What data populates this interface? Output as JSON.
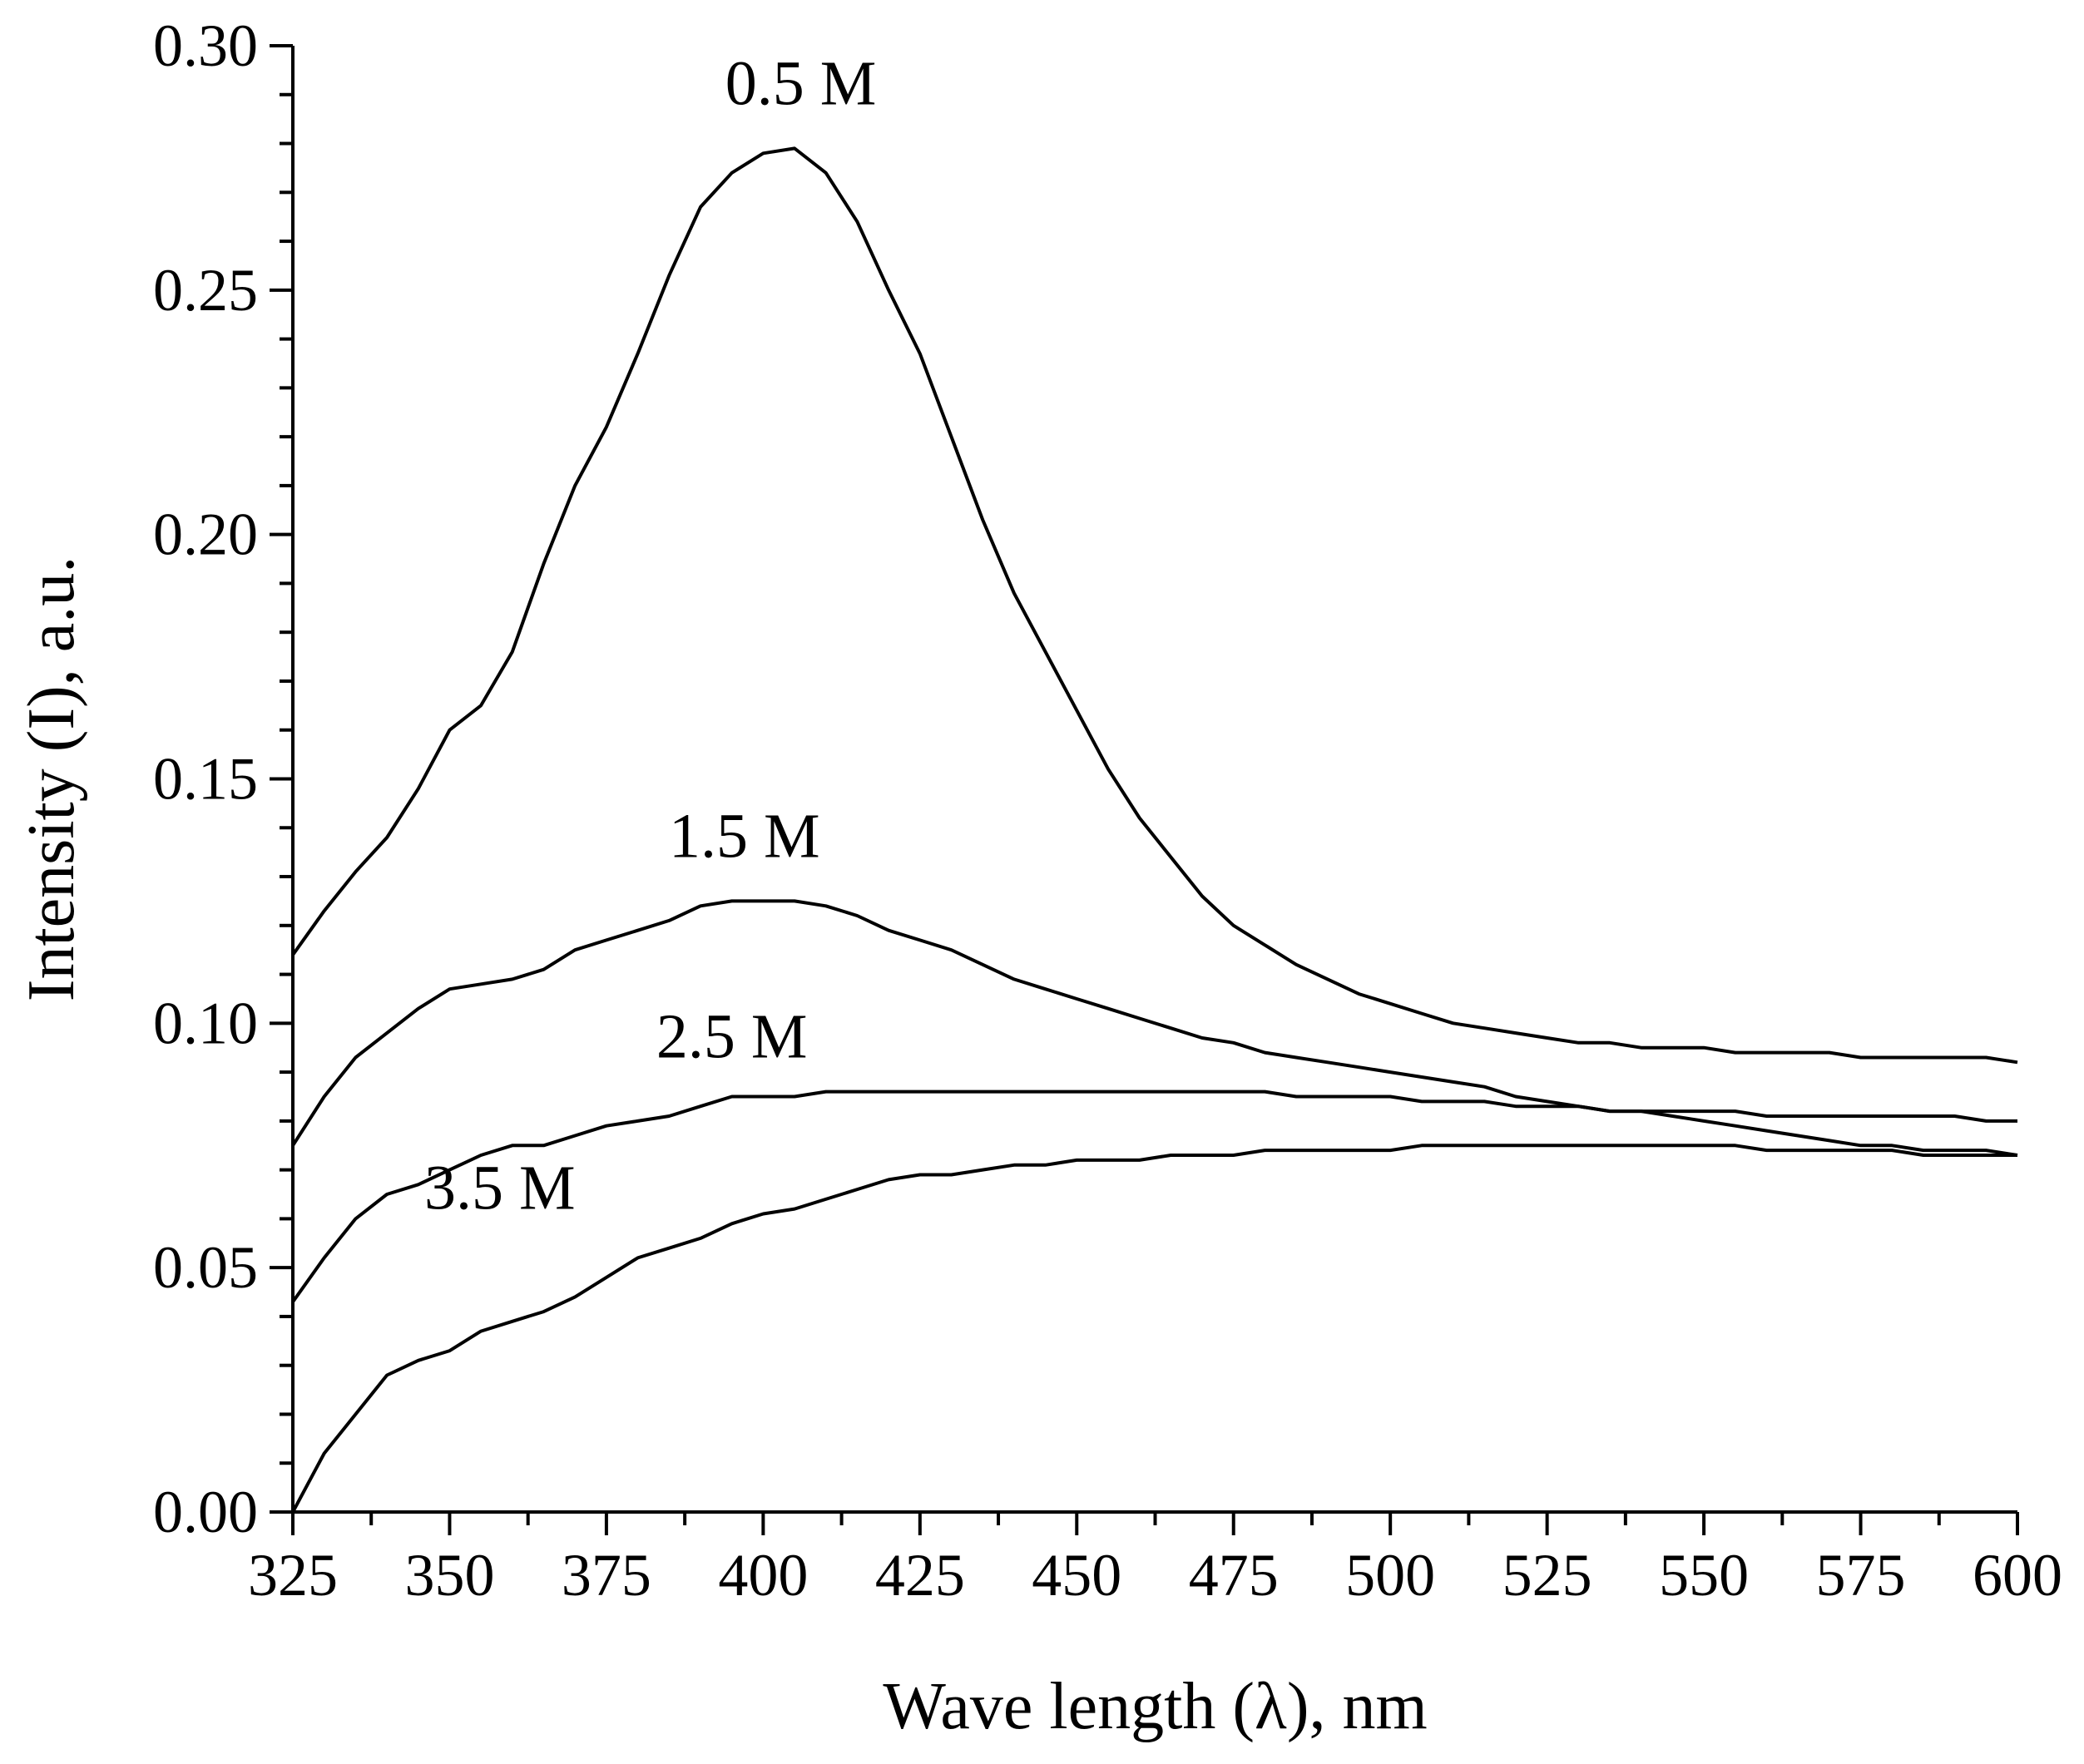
{
  "chart_data": {
    "type": "line",
    "xlabel": "Wave length (λ), nm",
    "ylabel": "Intensity (I), a.u.",
    "xlim": [
      325,
      600
    ],
    "ylim": [
      0,
      0.3
    ],
    "xticks": [
      "325",
      "350",
      "375",
      "400",
      "425",
      "450",
      "475",
      "500",
      "525",
      "550",
      "575",
      "600"
    ],
    "yticks": [
      "0.00",
      "0.05",
      "0.10",
      "0.15",
      "0.20",
      "0.25",
      "0.30"
    ],
    "grid": false,
    "series": [
      {
        "name": "0.5 M",
        "label_at": [
          406,
          0.288
        ],
        "x": [
          325,
          330,
          335,
          340,
          345,
          350,
          355,
          360,
          365,
          370,
          375,
          380,
          385,
          390,
          395,
          400,
          405,
          410,
          415,
          420,
          425,
          430,
          435,
          440,
          445,
          450,
          455,
          460,
          465,
          470,
          475,
          480,
          485,
          490,
          495,
          500,
          505,
          510,
          515,
          520,
          525,
          530,
          535,
          540,
          545,
          550,
          555,
          560,
          565,
          570,
          575,
          580,
          585,
          590,
          595,
          600
        ],
        "y": [
          0.114,
          0.123,
          0.131,
          0.138,
          0.148,
          0.16,
          0.165,
          0.176,
          0.194,
          0.21,
          0.222,
          0.237,
          0.253,
          0.267,
          0.274,
          0.278,
          0.279,
          0.274,
          0.264,
          0.25,
          0.237,
          0.22,
          0.203,
          0.188,
          0.176,
          0.164,
          0.152,
          0.142,
          0.134,
          0.126,
          0.12,
          0.116,
          0.112,
          0.109,
          0.106,
          0.104,
          0.102,
          0.1,
          0.099,
          0.098,
          0.097,
          0.096,
          0.096,
          0.095,
          0.095,
          0.095,
          0.094,
          0.094,
          0.094,
          0.094,
          0.093,
          0.093,
          0.093,
          0.093,
          0.093,
          0.092
        ]
      },
      {
        "name": "1.5 M",
        "label_at": [
          397,
          0.134
        ],
        "x": [
          325,
          330,
          335,
          340,
          345,
          350,
          355,
          360,
          365,
          370,
          375,
          380,
          385,
          390,
          395,
          400,
          405,
          410,
          415,
          420,
          425,
          430,
          435,
          440,
          445,
          450,
          455,
          460,
          465,
          470,
          475,
          480,
          485,
          490,
          495,
          500,
          505,
          510,
          515,
          520,
          525,
          530,
          535,
          540,
          545,
          550,
          555,
          560,
          565,
          570,
          575,
          580,
          585,
          590,
          595,
          600
        ],
        "y": [
          0.075,
          0.085,
          0.093,
          0.098,
          0.103,
          0.107,
          0.108,
          0.109,
          0.111,
          0.115,
          0.117,
          0.119,
          0.121,
          0.124,
          0.125,
          0.125,
          0.125,
          0.124,
          0.122,
          0.119,
          0.117,
          0.115,
          0.112,
          0.109,
          0.107,
          0.105,
          0.103,
          0.101,
          0.099,
          0.097,
          0.096,
          0.094,
          0.093,
          0.092,
          0.091,
          0.09,
          0.089,
          0.088,
          0.087,
          0.085,
          0.084,
          0.083,
          0.082,
          0.082,
          0.081,
          0.08,
          0.079,
          0.078,
          0.077,
          0.076,
          0.075,
          0.075,
          0.074,
          0.074,
          0.074,
          0.073
        ]
      },
      {
        "name": "2.5 M",
        "label_at": [
          395,
          0.093
        ],
        "x": [
          325,
          330,
          335,
          340,
          345,
          350,
          355,
          360,
          365,
          370,
          375,
          380,
          385,
          390,
          395,
          400,
          405,
          410,
          415,
          420,
          425,
          430,
          435,
          440,
          445,
          450,
          455,
          460,
          465,
          470,
          475,
          480,
          485,
          490,
          495,
          500,
          505,
          510,
          515,
          520,
          525,
          530,
          535,
          540,
          545,
          550,
          555,
          560,
          565,
          570,
          575,
          580,
          585,
          590,
          595,
          600
        ],
        "y": [
          0.043,
          0.052,
          0.06,
          0.065,
          0.067,
          0.07,
          0.073,
          0.075,
          0.075,
          0.077,
          0.079,
          0.08,
          0.081,
          0.083,
          0.085,
          0.085,
          0.085,
          0.086,
          0.086,
          0.086,
          0.086,
          0.086,
          0.086,
          0.086,
          0.086,
          0.086,
          0.086,
          0.086,
          0.086,
          0.086,
          0.086,
          0.086,
          0.085,
          0.085,
          0.085,
          0.085,
          0.084,
          0.084,
          0.084,
          0.083,
          0.083,
          0.083,
          0.082,
          0.082,
          0.082,
          0.082,
          0.082,
          0.081,
          0.081,
          0.081,
          0.081,
          0.081,
          0.081,
          0.081,
          0.08,
          0.08
        ]
      },
      {
        "name": "3.5 M",
        "label_at": [
          358,
          0.062
        ],
        "x": [
          325,
          330,
          335,
          340,
          345,
          350,
          355,
          360,
          365,
          370,
          375,
          380,
          385,
          390,
          395,
          400,
          405,
          410,
          415,
          420,
          425,
          430,
          435,
          440,
          445,
          450,
          455,
          460,
          465,
          470,
          475,
          480,
          485,
          490,
          495,
          500,
          505,
          510,
          515,
          520,
          525,
          530,
          535,
          540,
          545,
          550,
          555,
          560,
          565,
          570,
          575,
          580,
          585,
          590,
          595,
          600
        ],
        "y": [
          0.0,
          0.012,
          0.02,
          0.028,
          0.031,
          0.033,
          0.037,
          0.039,
          0.041,
          0.044,
          0.048,
          0.052,
          0.054,
          0.056,
          0.059,
          0.061,
          0.062,
          0.064,
          0.066,
          0.068,
          0.069,
          0.069,
          0.07,
          0.071,
          0.071,
          0.072,
          0.072,
          0.072,
          0.073,
          0.073,
          0.073,
          0.074,
          0.074,
          0.074,
          0.074,
          0.074,
          0.075,
          0.075,
          0.075,
          0.075,
          0.075,
          0.075,
          0.075,
          0.075,
          0.075,
          0.075,
          0.075,
          0.074,
          0.074,
          0.074,
          0.074,
          0.074,
          0.073,
          0.073,
          0.073,
          0.073
        ]
      }
    ]
  }
}
